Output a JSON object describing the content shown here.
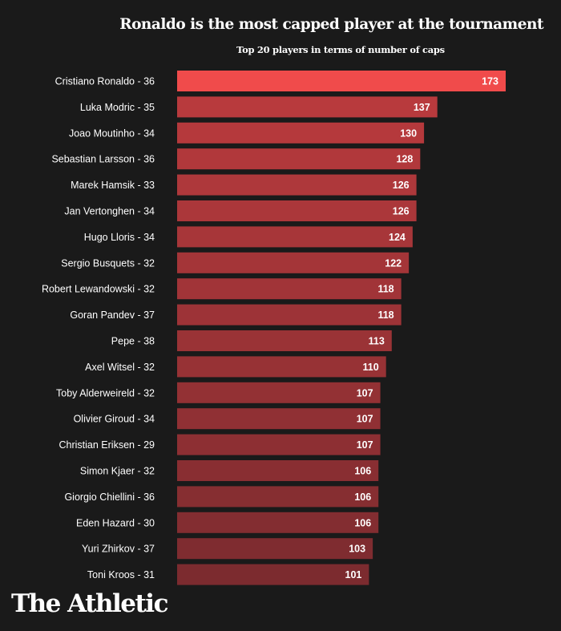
{
  "chart_data": {
    "type": "bar",
    "orientation": "horizontal",
    "title": "Ronaldo is the most capped player at the tournament",
    "subtitle": "Top 20 players in terms of number of caps",
    "categories": [
      "Cristiano Ronaldo - 36",
      "Luka Modric - 35",
      "Joao Moutinho - 34",
      "Sebastian Larsson - 36",
      "Marek Hamsik - 33",
      "Jan Vertonghen - 34",
      "Hugo Lloris - 34",
      "Sergio Busquets - 32",
      "Robert Lewandowski - 32",
      "Goran Pandev - 37",
      "Pepe - 38",
      "Axel Witsel - 32",
      "Toby Alderweireld - 32",
      "Olivier Giroud - 34",
      "Christian Eriksen - 29",
      "Simon Kjaer - 32",
      "Giorgio Chiellini - 36",
      "Eden Hazard - 30",
      "Yuri Zhirkov - 37",
      "Toni Kroos - 31"
    ],
    "values": [
      173,
      137,
      130,
      128,
      126,
      126,
      124,
      122,
      118,
      118,
      113,
      110,
      107,
      107,
      107,
      106,
      106,
      106,
      103,
      101
    ],
    "xlim": [
      0,
      173
    ],
    "grid": false,
    "data_labels": true,
    "colors": {
      "highlight": "#f04b4b",
      "bar_start": "#b83a3d",
      "bar_end": "#7c2b2f",
      "background": "#1a1a1a",
      "text": "#ffffff"
    }
  },
  "branding": {
    "logo": "The Athletic"
  }
}
